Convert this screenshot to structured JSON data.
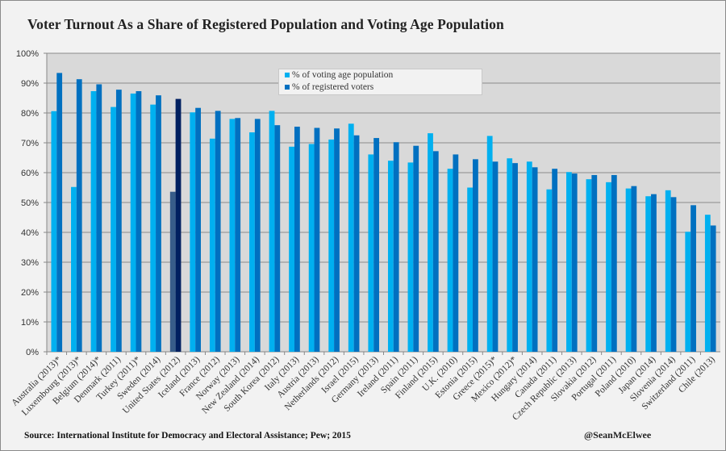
{
  "chart_data": {
    "type": "bar",
    "title": "Voter Turnout As a Share of Registered Population and Voting Age Population",
    "xlabel": "",
    "ylabel": "",
    "ylim": [
      0,
      100
    ],
    "y_ticks": [
      "0%",
      "10%",
      "20%",
      "30%",
      "40%",
      "50%",
      "60%",
      "70%",
      "80%",
      "90%",
      "100%"
    ],
    "grid": true,
    "legend_position": "top-center",
    "categories": [
      "Australia (2013)*",
      "Luxembourg (2013)*",
      "Belgium (2014)*",
      "Denmark (2011)",
      "Turkey (2011)*",
      "Sweden (2014)",
      "United States (2012)",
      "Iceland (2013)",
      "France (2012)",
      "Norway (2013)",
      "New Zealand (2014)",
      "South Korea (2012)",
      "Italy (2013)",
      "Austria (2013)",
      "Netherlands (2012)",
      "Israel (2015)",
      "Germany (2013)",
      "Ireland (2011)",
      "Spain (2011)",
      "Finland (2015)",
      "U.K. (2010)",
      "Estonia (2015)",
      "Greece (2015)*",
      "Mexico (2012)*",
      "Hungary (2014)",
      "Canada (2011)",
      "Czech Republic (2013)",
      "Slovakia (2012)",
      "Portugal (2011)",
      "Poland (2010)",
      "Japan (2014)",
      "Slovenia (2014)",
      "Switzerland (2011)",
      "Chile (2013)"
    ],
    "series": [
      {
        "name": "% of voting age population",
        "color": "#00b0f0",
        "highlight_color": "#385d8a",
        "values": [
          80.6,
          55.2,
          87.3,
          82.0,
          86.5,
          82.8,
          53.6,
          80.2,
          71.4,
          78.0,
          73.5,
          80.7,
          68.7,
          69.6,
          71.1,
          76.4,
          66.1,
          64.0,
          63.4,
          73.2,
          61.3,
          55.0,
          72.3,
          64.8,
          63.7,
          54.4,
          60.2,
          57.8,
          56.8,
          54.7,
          52.1,
          54.1,
          40.2,
          45.9
        ]
      },
      {
        "name": "% of registered voters",
        "color": "#0070c0",
        "highlight_color": "#002060",
        "values": [
          93.4,
          91.3,
          89.6,
          87.8,
          87.3,
          85.9,
          84.7,
          81.7,
          80.7,
          78.3,
          78.0,
          75.9,
          75.4,
          75.0,
          74.8,
          72.5,
          71.6,
          70.2,
          69.0,
          67.2,
          66.1,
          64.5,
          63.7,
          63.2,
          61.8,
          61.3,
          59.7,
          59.2,
          59.2,
          55.5,
          52.8,
          51.8,
          49.1,
          42.3
        ]
      }
    ],
    "highlighted_category": "United States (2012)",
    "colors": {
      "plot_background": "#d9d9d9",
      "gridline": "#8c8c8c"
    }
  },
  "footer": {
    "source": "Source:  International Institute for Democracy and Electoral Assistance;  Pew; 2015",
    "credit": "@SeanMcElwee"
  }
}
